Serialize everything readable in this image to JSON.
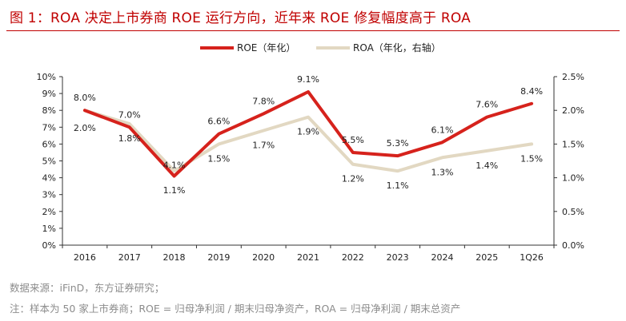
{
  "title": "图 1：ROA 决定上市券商 ROE 运行方向，近年来 ROE 修复幅度高于 ROA",
  "source": "数据来源：iFinD，东方证券研究；",
  "note": "注：样本为 50 家上市券商；ROE = 归母净利润 / 期末归母净资产，ROA = 归母净利润 / 期末总资产",
  "colors": {
    "title": "#c00000",
    "roe": "#d6221c",
    "roa": "#e2d8c2"
  },
  "chart_data": {
    "type": "line",
    "categories": [
      "2016",
      "2017",
      "2018",
      "2019",
      "2020",
      "2021",
      "2022",
      "2023",
      "2024",
      "2025",
      "1Q26"
    ],
    "y_left": {
      "min": 0,
      "max": 10,
      "step": 1,
      "ticks": [
        "0%",
        "1%",
        "2%",
        "3%",
        "4%",
        "5%",
        "6%",
        "7%",
        "8%",
        "9%",
        "10%"
      ]
    },
    "y_right": {
      "min": 0,
      "max": 2.5,
      "step": 0.5,
      "ticks": [
        "0.0%",
        "0.5%",
        "1.0%",
        "1.5%",
        "2.0%",
        "2.5%"
      ]
    },
    "legend_position": "top-center",
    "grid": false,
    "series": [
      {
        "name": "ROE（年化）",
        "axis": "left",
        "values": [
          8.0,
          7.0,
          4.1,
          6.6,
          7.8,
          9.1,
          5.5,
          5.3,
          6.1,
          7.6,
          8.4
        ],
        "labels": [
          "8.0%",
          "7.0%",
          "4.1%",
          "6.6%",
          "7.8%",
          "9.1%",
          "5.5%",
          "5.3%",
          "6.1%",
          "7.6%",
          "8.4%"
        ]
      },
      {
        "name": "ROA（年化，右轴）",
        "axis": "right",
        "values": [
          2.0,
          1.8,
          1.1,
          1.5,
          1.7,
          1.9,
          1.2,
          1.1,
          1.3,
          1.4,
          1.5
        ],
        "labels": [
          "2.0%",
          "1.8%",
          "1.1%",
          "1.5%",
          "1.7%",
          "1.9%",
          "1.2%",
          "1.1%",
          "1.3%",
          "1.4%",
          "1.5%"
        ]
      }
    ]
  }
}
